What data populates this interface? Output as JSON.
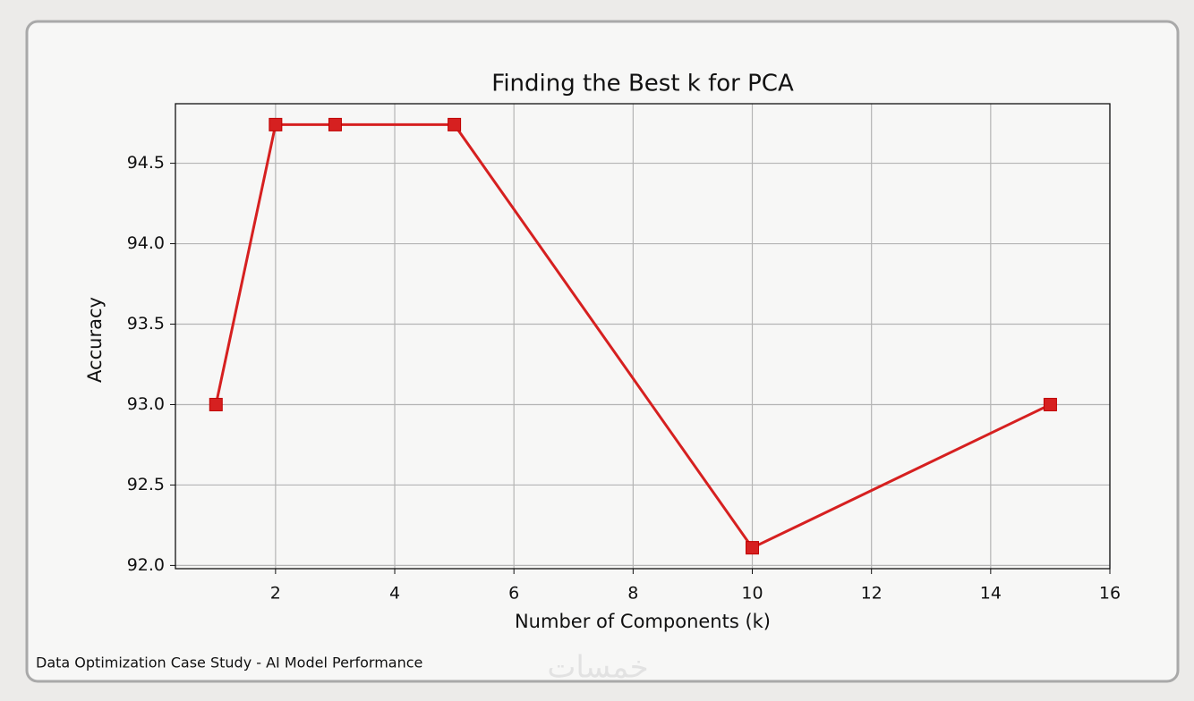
{
  "chart_data": {
    "type": "line",
    "title": "Finding the Best k for PCA",
    "x_label": "Number of Components (k)",
    "y_label": "Accuracy",
    "x": [
      1,
      2,
      3,
      5,
      10,
      15
    ],
    "values": [
      93.0,
      94.74,
      94.74,
      94.74,
      92.11,
      93.0
    ],
    "color": "#d62020",
    "marker": "square",
    "xlim": [
      0.32,
      16
    ],
    "xticks": [
      2,
      4,
      6,
      8,
      10,
      12,
      14,
      16
    ],
    "ylim": [
      91.98,
      94.87
    ],
    "yticks": [
      {
        "value": 92,
        "label": "92.0"
      },
      {
        "value": 92.5,
        "label": "92.5"
      },
      {
        "value": 93,
        "label": "93.0"
      },
      {
        "value": 93.5,
        "label": "93.5"
      },
      {
        "value": 94,
        "label": "94.0"
      },
      {
        "value": 94.5,
        "label": "94.5"
      }
    ],
    "grid": true
  },
  "footer": "Data Optimization Case Study - AI Model Performance",
  "watermark": "خمسات"
}
